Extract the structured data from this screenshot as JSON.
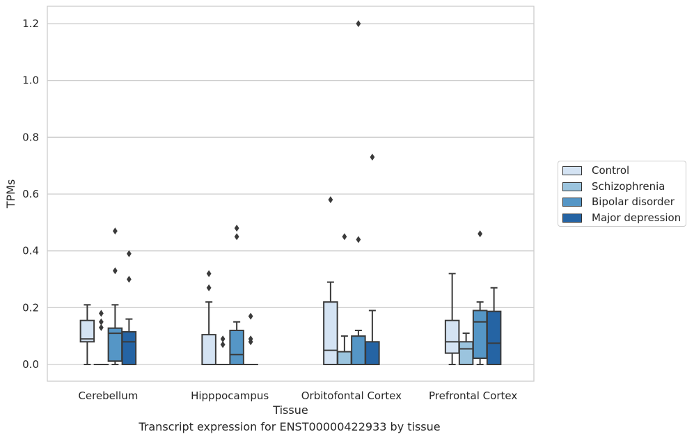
{
  "chart_data": {
    "type": "box",
    "caption": "Transcript expression for ENST00000422933 by tissue",
    "xlabel": "Tissue",
    "ylabel": "TPMs",
    "ylim": [
      -0.06,
      1.26
    ],
    "yticks": [
      "0.0",
      "0.2",
      "0.4",
      "0.6",
      "0.8",
      "1.0",
      "1.2"
    ],
    "ytick_values": [
      0.0,
      0.2,
      0.4,
      0.6,
      0.8,
      1.0,
      1.2
    ],
    "grid": true,
    "legend_position": "right",
    "categories": [
      "Cerebellum",
      "Hipppocampus",
      "Orbitofontal Cortex",
      "Prefrontal Cortex"
    ],
    "series": [
      {
        "name": "Control",
        "color": "#d4e3f3",
        "boxes": [
          {
            "whislo": 0.0,
            "q1": 0.08,
            "med": 0.09,
            "q3": 0.155,
            "whishi": 0.21,
            "fliers": []
          },
          {
            "whislo": 0.0,
            "q1": 0.0,
            "med": 0.0,
            "q3": 0.105,
            "whishi": 0.22,
            "fliers": [
              0.27,
              0.32
            ]
          },
          {
            "whislo": 0.0,
            "q1": 0.0,
            "med": 0.05,
            "q3": 0.22,
            "whishi": 0.29,
            "fliers": [
              0.58
            ]
          },
          {
            "whislo": 0.0,
            "q1": 0.04,
            "med": 0.08,
            "q3": 0.155,
            "whishi": 0.32,
            "fliers": []
          }
        ]
      },
      {
        "name": "Schizophrenia",
        "color": "#9bc4de",
        "boxes": [
          {
            "whislo": 0.0,
            "q1": 0.0,
            "med": 0.0,
            "q3": 0.0,
            "whishi": 0.0,
            "fliers": [
              0.13,
              0.15,
              0.18
            ]
          },
          {
            "whislo": 0.0,
            "q1": 0.0,
            "med": 0.0,
            "q3": 0.0,
            "whishi": 0.0,
            "fliers": [
              0.07,
              0.09
            ]
          },
          {
            "whislo": 0.0,
            "q1": 0.0,
            "med": 0.0,
            "q3": 0.045,
            "whishi": 0.1,
            "fliers": [
              0.45
            ]
          },
          {
            "whislo": 0.0,
            "q1": 0.0,
            "med": 0.055,
            "q3": 0.08,
            "whishi": 0.11,
            "fliers": []
          }
        ]
      },
      {
        "name": "Bipolar disorder",
        "color": "#5596c6",
        "boxes": [
          {
            "whislo": 0.0,
            "q1": 0.012,
            "med": 0.11,
            "q3": 0.128,
            "whishi": 0.21,
            "fliers": [
              0.33,
              0.47
            ]
          },
          {
            "whislo": 0.0,
            "q1": 0.0,
            "med": 0.035,
            "q3": 0.12,
            "whishi": 0.15,
            "fliers": [
              0.45,
              0.48
            ]
          },
          {
            "whislo": 0.0,
            "q1": 0.0,
            "med": 0.0,
            "q3": 0.1,
            "whishi": 0.12,
            "fliers": [
              0.44,
              1.2
            ]
          },
          {
            "whislo": 0.0,
            "q1": 0.022,
            "med": 0.15,
            "q3": 0.19,
            "whishi": 0.22,
            "fliers": [
              0.46
            ]
          }
        ]
      },
      {
        "name": "Major depression",
        "color": "#2564a4",
        "boxes": [
          {
            "whislo": 0.0,
            "q1": 0.0,
            "med": 0.08,
            "q3": 0.115,
            "whishi": 0.16,
            "fliers": [
              0.3,
              0.39
            ]
          },
          {
            "whislo": 0.0,
            "q1": 0.0,
            "med": 0.0,
            "q3": 0.0,
            "whishi": 0.0,
            "fliers": [
              0.08,
              0.09,
              0.17
            ]
          },
          {
            "whislo": 0.0,
            "q1": 0.0,
            "med": 0.0,
            "q3": 0.08,
            "whishi": 0.19,
            "fliers": [
              0.73
            ]
          },
          {
            "whislo": 0.0,
            "q1": 0.0,
            "med": 0.075,
            "q3": 0.187,
            "whishi": 0.27,
            "fliers": []
          }
        ]
      }
    ]
  }
}
